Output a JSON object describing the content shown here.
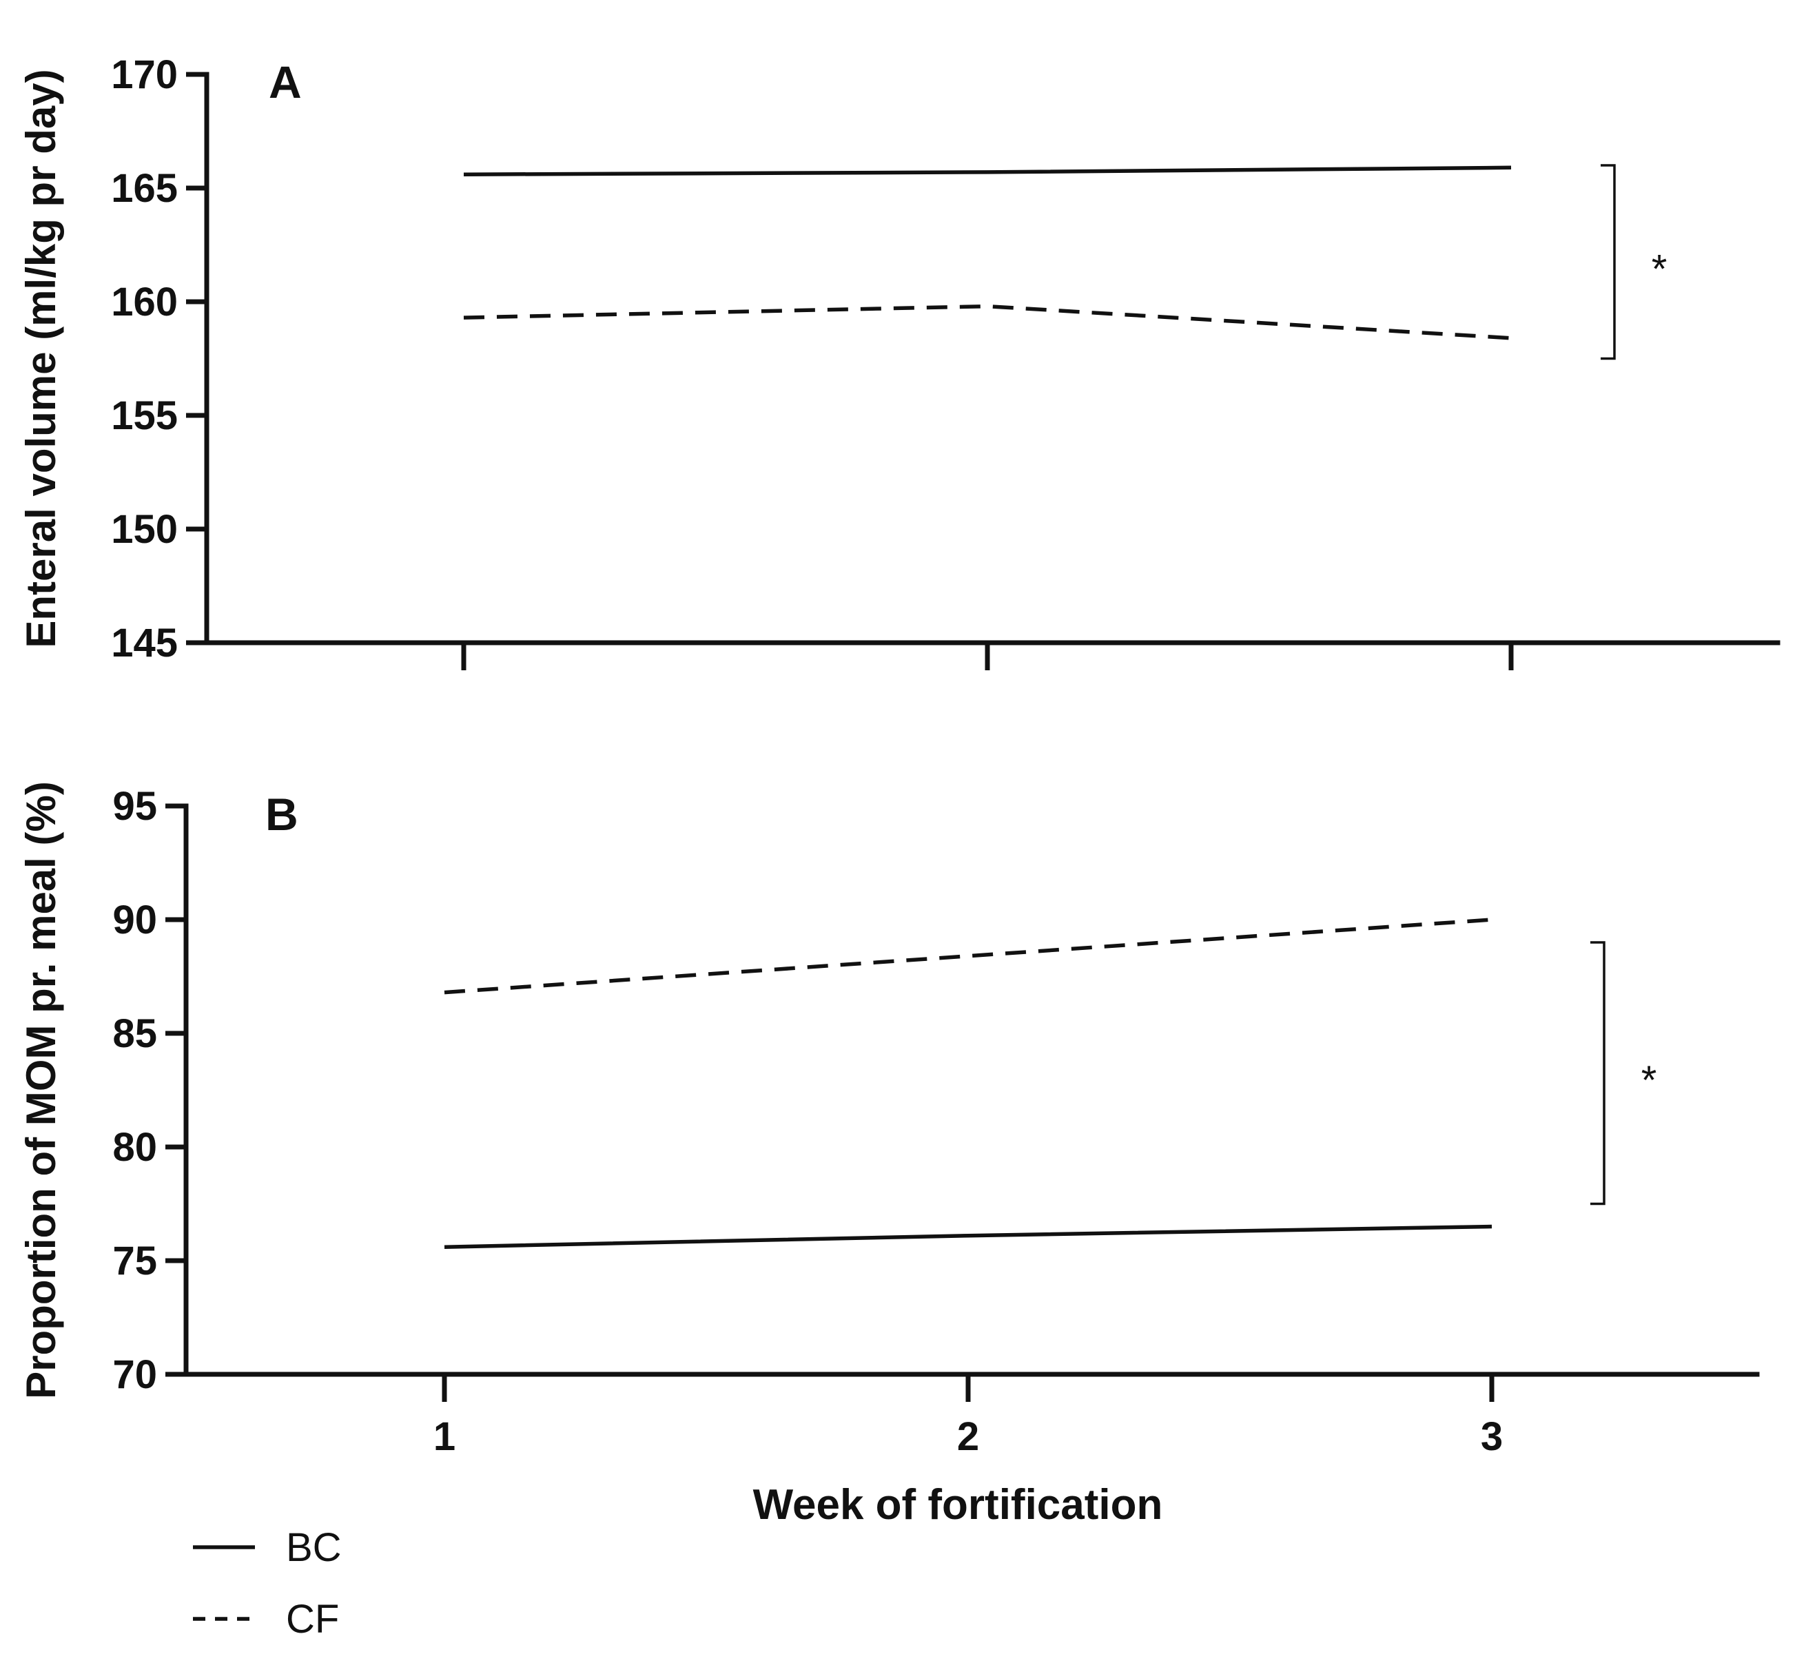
{
  "chart_data": [
    {
      "panel": "A",
      "type": "line",
      "ylabel": "Enteral volume (ml/kg pr day)",
      "xlabel": "",
      "ylim": [
        145,
        170
      ],
      "yticks": [
        145,
        150,
        155,
        160,
        165,
        170
      ],
      "x": [
        1,
        2,
        3
      ],
      "xticks": [
        1,
        2,
        3
      ],
      "show_x_tick_labels": false,
      "series": [
        {
          "name": "BC",
          "style": "solid",
          "values": [
            165.6,
            165.7,
            165.9
          ]
        },
        {
          "name": "CF",
          "style": "dashed",
          "values": [
            159.3,
            159.8,
            158.4
          ]
        }
      ],
      "significance": {
        "label": "*",
        "range": [
          157.5,
          166.0
        ]
      }
    },
    {
      "panel": "B",
      "type": "line",
      "ylabel": "Proportion of MOM pr. meal (%)",
      "xlabel": "Week of fortification",
      "ylim": [
        70,
        95
      ],
      "yticks": [
        70,
        75,
        80,
        85,
        90,
        95
      ],
      "x": [
        1,
        2,
        3
      ],
      "xticks": [
        1,
        2,
        3
      ],
      "show_x_tick_labels": true,
      "series": [
        {
          "name": "BC",
          "style": "solid",
          "values": [
            75.6,
            76.1,
            76.5
          ]
        },
        {
          "name": "CF",
          "style": "dashed",
          "values": [
            86.8,
            88.4,
            90.0
          ]
        }
      ],
      "significance": {
        "label": "*",
        "range": [
          77.5,
          89.0
        ]
      }
    }
  ],
  "legend": [
    {
      "label": "BC",
      "style": "solid"
    },
    {
      "label": "CF",
      "style": "dashed"
    }
  ]
}
